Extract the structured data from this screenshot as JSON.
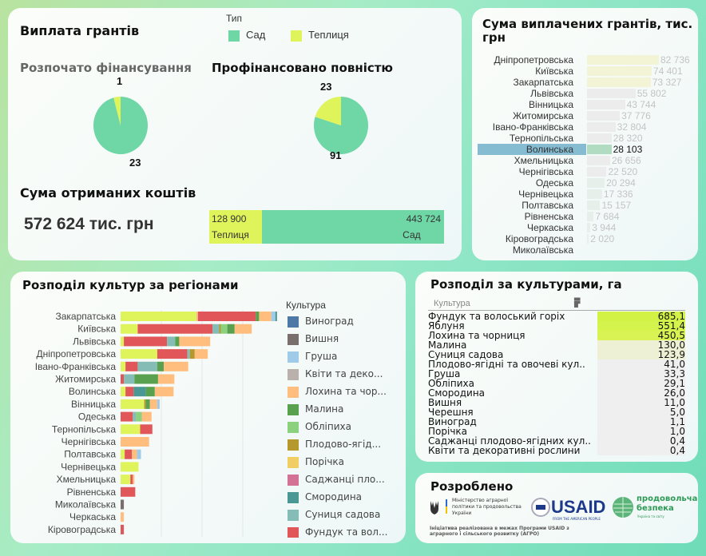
{
  "grants": {
    "title": "Виплата грантів",
    "legend_title": "Тип",
    "legend": [
      {
        "label": "Сад",
        "color": "#6fd6a6"
      },
      {
        "label": "Теплиця",
        "color": "#dff35a"
      }
    ],
    "started": {
      "title": "Розпочато фінансування",
      "sad": 23,
      "teplytsia": 1,
      "sad_label": "23",
      "teplytsia_label": "1"
    },
    "full": {
      "title": "Профінансовано повністю",
      "sad": 91,
      "teplytsia": 23,
      "sad_label": "91",
      "teplytsia_label": "23"
    },
    "sum_title": "Сума отриманих коштів",
    "total": "572 624 тис. грн",
    "split": {
      "teplytsia_value": 128900,
      "sad_value": 443724,
      "teplytsia_text": "128 900",
      "sad_text": "443 724",
      "teplytsia_label": "Теплиця",
      "sad_label": "Сад"
    }
  },
  "paid": {
    "title": "Сума виплачених грантів, тис. грн",
    "selected": "Волинська",
    "rows": [
      {
        "region": "Дніпропетровська",
        "value": 82736,
        "text": "82 736"
      },
      {
        "region": "Київська",
        "value": 74401,
        "text": "74 401"
      },
      {
        "region": "Закарпатська",
        "value": 73327,
        "text": "73 327"
      },
      {
        "region": "Львівська",
        "value": 55802,
        "text": "55 802"
      },
      {
        "region": "Вінницька",
        "value": 43744,
        "text": "43 744"
      },
      {
        "region": "Житомирська",
        "value": 37776,
        "text": "37 776"
      },
      {
        "region": "Івано-Франківська",
        "value": 32804,
        "text": "32 804"
      },
      {
        "region": "Тернопільська",
        "value": 28320,
        "text": "28 320"
      },
      {
        "region": "Волинська",
        "value": 28103,
        "text": "28 103"
      },
      {
        "region": "Хмельницька",
        "value": 26656,
        "text": "26 656"
      },
      {
        "region": "Чернігівська",
        "value": 22520,
        "text": "22 520"
      },
      {
        "region": "Одеська",
        "value": 20294,
        "text": "20 294"
      },
      {
        "region": "Чернівецька",
        "value": 17336,
        "text": "17 336"
      },
      {
        "region": "Полтавська",
        "value": 15157,
        "text": "15 157"
      },
      {
        "region": "Рівненська",
        "value": 7684,
        "text": "7 684"
      },
      {
        "region": "Черкаська",
        "value": 3944,
        "text": "3 944"
      },
      {
        "region": "Кіровоградська",
        "value": 2020,
        "text": "2 020"
      },
      {
        "region": "Миколаївська",
        "value": 0,
        "text": ""
      }
    ]
  },
  "chart_data": {
    "type": "bar",
    "orientation": "horizontal",
    "stacked": true,
    "title": "Розподіл культур за регіонами",
    "legend_title": "Культура",
    "xlim": [
      0,
      200
    ],
    "grid": true,
    "categories": [
      "Закарпатська",
      "Київська",
      "Львівська",
      "Дніпропетровська",
      "Івано-Франківська",
      "Житомирська",
      "Волинська",
      "Вінницька",
      "Одеська",
      "Тернопільська",
      "Чернігівська",
      "Полтавська",
      "Чернівецька",
      "Хмельницька",
      "Рівненська",
      "Миколаївська",
      "Черкаська",
      "Кіровоградська"
    ],
    "legend": [
      {
        "name": "Виноград",
        "color": "#4e79a7"
      },
      {
        "name": "Вишня",
        "color": "#79706e"
      },
      {
        "name": "Груша",
        "color": "#a0cbe8"
      },
      {
        "name": "Квіти та деко...",
        "color": "#bab0ac"
      },
      {
        "name": "Лохина та чор...",
        "color": "#ffbe7d"
      },
      {
        "name": "Малина",
        "color": "#59a14f"
      },
      {
        "name": "Обліпиха",
        "color": "#8cd17d"
      },
      {
        "name": "Плодово-ягід...",
        "color": "#b6992d"
      },
      {
        "name": "Порічка",
        "color": "#f1ce63"
      },
      {
        "name": "Саджанці пло...",
        "color": "#d37295"
      },
      {
        "name": "Смородина",
        "color": "#499894"
      },
      {
        "name": "Суниця садова",
        "color": "#86bcb6"
      },
      {
        "name": "Фундук та вол...",
        "color": "#e15759"
      }
    ],
    "colors": {
      "Яблуня": "#dff35a",
      "Лохина": "#ffbe7d",
      "Фундук": "#e15759",
      "Малина": "#59a14f",
      "Груша": "#a0cbe8",
      "Смородина": "#499894",
      "Суниця": "#86bcb6",
      "Плодово": "#b6992d",
      "Обліпиха": "#8cd17d",
      "Вишня": "#79706e"
    },
    "stacks": [
      [
        [
          "Яблуня",
          93
        ],
        [
          "Лохина",
          2
        ],
        [
          "Фундук",
          71
        ],
        [
          "Малина",
          4
        ],
        [
          "Лохина",
          15
        ],
        [
          "Груша",
          5
        ],
        [
          "Смородина",
          2
        ]
      ],
      [
        [
          "Яблуня",
          21
        ],
        [
          "Фундук",
          92
        ],
        [
          "Суниця",
          8
        ],
        [
          "Плодово",
          2
        ],
        [
          "Обліпиха",
          8
        ],
        [
          "Малина",
          9
        ],
        [
          "Лохина",
          21
        ]
      ],
      [
        [
          "Яблуня",
          4
        ],
        [
          "Фундук",
          53
        ],
        [
          "Суниця",
          10
        ],
        [
          "Малина",
          5
        ],
        [
          "Лохина",
          38
        ]
      ],
      [
        [
          "Яблуня",
          45
        ],
        [
          "Фундук",
          37
        ],
        [
          "Суниця",
          3
        ],
        [
          "Плодово",
          6
        ],
        [
          "Лохина",
          16
        ]
      ],
      [
        [
          "Яблуня",
          6
        ],
        [
          "Фундук",
          15
        ],
        [
          "Суниця",
          24
        ],
        [
          "Малина",
          8
        ],
        [
          "Лохина",
          30
        ]
      ],
      [
        [
          "Фундук",
          4
        ],
        [
          "Суниця",
          13
        ],
        [
          "Малина",
          29
        ],
        [
          "Лохина",
          20
        ]
      ],
      [
        [
          "Яблуня",
          6
        ],
        [
          "Фундук",
          10
        ],
        [
          "Смородина",
          15
        ],
        [
          "Малина",
          11
        ],
        [
          "Лохина",
          23
        ]
      ],
      [
        [
          "Яблуня",
          29
        ],
        [
          "Плодово",
          2
        ],
        [
          "Малина",
          5
        ],
        [
          "Лохина",
          9
        ],
        [
          "Груша",
          3
        ]
      ],
      [
        [
          "Фундук",
          15
        ],
        [
          "Суниця",
          4
        ],
        [
          "Обліпиха",
          7
        ],
        [
          "Лохина",
          12
        ]
      ],
      [
        [
          "Яблуня",
          24
        ],
        [
          "Фундук",
          15
        ]
      ],
      [
        [
          "Лохина",
          35
        ]
      ],
      [
        [
          "Яблуня",
          5
        ],
        [
          "Фундук",
          9
        ],
        [
          "Лохина",
          6
        ],
        [
          "Груша",
          5
        ]
      ],
      [
        [
          "Яблуня",
          22
        ]
      ],
      [
        [
          "Яблуня",
          12
        ],
        [
          "Фундук",
          3
        ],
        [
          "Лохина",
          2
        ]
      ],
      [
        [
          "Фундук",
          18
        ]
      ],
      [
        [
          "Вишня",
          4
        ]
      ],
      [
        [
          "Лохина",
          4
        ]
      ],
      [
        [
          "Фундук",
          4
        ]
      ]
    ]
  },
  "crops": {
    "title": "Розподіл за культурами, га",
    "column": "Культура",
    "rows": [
      [
        "Фундук та волоський горіх",
        "685,1",
        685.1
      ],
      [
        "Яблуня",
        "551,4",
        551.4
      ],
      [
        "Лохина та чорниця",
        "450,5",
        450.5
      ],
      [
        "Малина",
        "130,0",
        130
      ],
      [
        "Суниця садова",
        "123,9",
        123.9
      ],
      [
        "Плодово-ягідні та овочеві кул..",
        "41,0",
        41
      ],
      [
        "Груша",
        "33,3",
        33.3
      ],
      [
        "Обліпиха",
        "29,1",
        29.1
      ],
      [
        "Смородина",
        "26,0",
        26
      ],
      [
        "Вишня",
        "11,0",
        11
      ],
      [
        "Черешня",
        "5,0",
        5
      ],
      [
        "Виноград",
        "1,1",
        1.1
      ],
      [
        "Порічка",
        "1,0",
        1
      ],
      [
        "Саджанці плодово-ягідних кул..",
        "0,4",
        0.4
      ],
      [
        "Квіти та декоративні рослини",
        "0,4",
        0.4
      ]
    ]
  },
  "footer": {
    "title": "Розроблено",
    "ministry": "Міністерство аграрної політики та продовольства України",
    "usaid": "USAID",
    "usaid_sub": "FROM THE AMERICAN PEOPLE",
    "food": "продовольча безпека",
    "food_sub": "Україна та світу",
    "note": "Ініціатива реалізована в межах Програми USAID з аграрного і сільського розвитку (АГРО)"
  }
}
